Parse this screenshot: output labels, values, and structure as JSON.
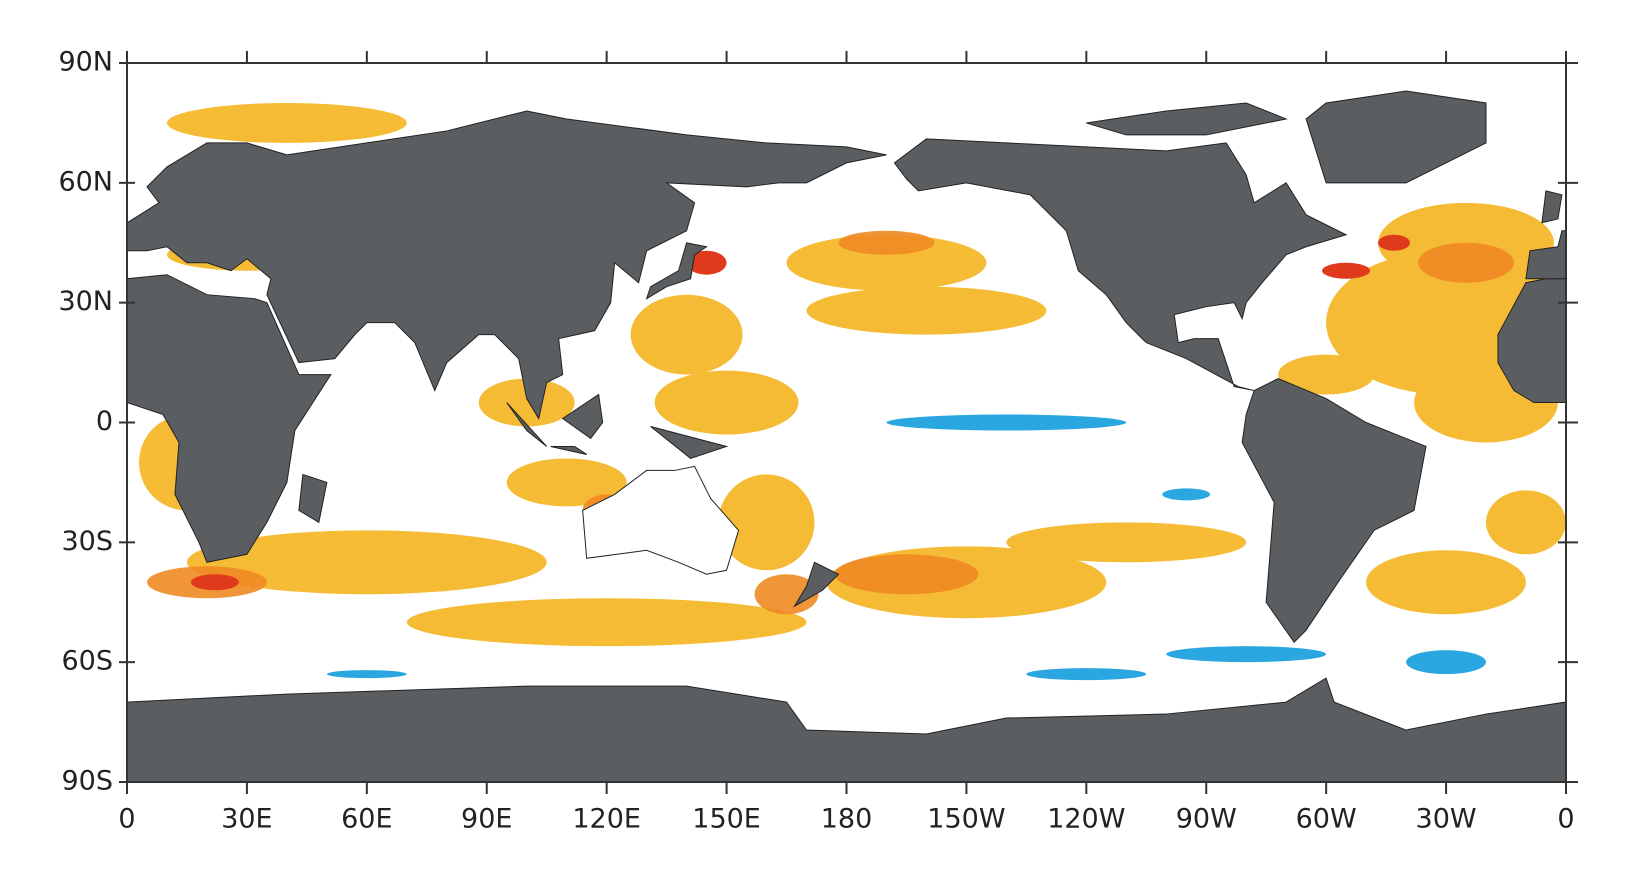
{
  "chart_data": {
    "type": "map",
    "xlim": [
      0,
      360
    ],
    "xticks": [
      0,
      {
        "value": 30,
        "label": "30E"
      },
      {
        "value": 60,
        "label": "60E"
      },
      {
        "value": 90,
        "label": "90E"
      },
      {
        "value": 120,
        "label": "120E"
      },
      {
        "value": 150,
        "label": "150E"
      },
      180,
      {
        "value": 210,
        "label": "150W"
      },
      {
        "value": 240,
        "label": "120W"
      },
      {
        "value": 270,
        "label": "90W"
      },
      {
        "value": 300,
        "label": "60W"
      },
      {
        "value": 330,
        "label": "30W"
      },
      {
        "value": 360,
        "label": "0"
      }
    ],
    "ylim": [
      -90,
      90
    ],
    "yticks": [
      {
        "value": -90,
        "label": "90S"
      },
      {
        "value": -60,
        "label": "60S"
      },
      {
        "value": -30,
        "label": "30S"
      },
      0,
      {
        "value": 30,
        "label": "30N"
      },
      {
        "value": 60,
        "label": "60N"
      },
      {
        "value": 90,
        "label": "90N"
      }
    ]
  }
}
